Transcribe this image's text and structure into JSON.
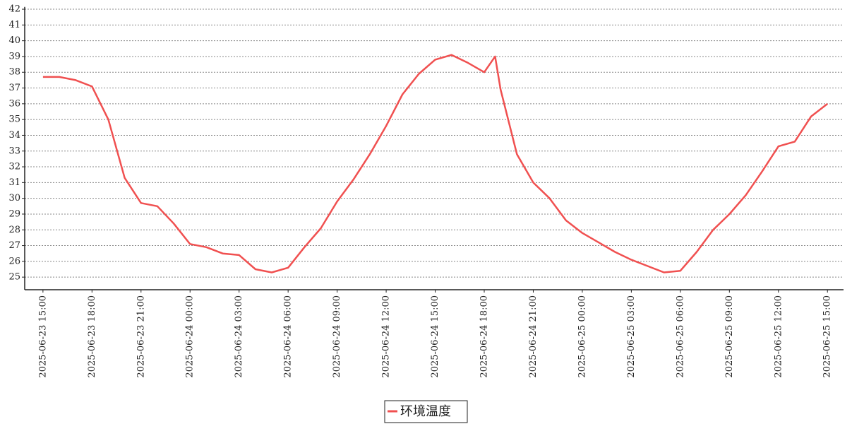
{
  "chart_data": {
    "type": "line",
    "x": [
      "2025-06-23 15:00",
      "2025-06-23 16:00",
      "2025-06-23 17:00",
      "2025-06-23 18:00",
      "2025-06-23 19:00",
      "2025-06-23 20:00",
      "2025-06-23 21:00",
      "2025-06-23 22:00",
      "2025-06-23 23:00",
      "2025-06-24 00:00",
      "2025-06-24 01:00",
      "2025-06-24 02:00",
      "2025-06-24 03:00",
      "2025-06-24 04:00",
      "2025-06-24 05:00",
      "2025-06-24 06:00",
      "2025-06-24 07:00",
      "2025-06-24 08:00",
      "2025-06-24 09:00",
      "2025-06-24 10:00",
      "2025-06-24 11:00",
      "2025-06-24 12:00",
      "2025-06-24 13:00",
      "2025-06-24 14:00",
      "2025-06-24 15:00",
      "2025-06-24 16:00",
      "2025-06-24 17:00",
      "2025-06-24 18:00",
      "2025-06-24 18:40",
      "2025-06-24 19:00",
      "2025-06-24 20:00",
      "2025-06-24 21:00",
      "2025-06-24 22:00",
      "2025-06-24 23:00",
      "2025-06-25 00:00",
      "2025-06-25 01:00",
      "2025-06-25 02:00",
      "2025-06-25 03:00",
      "2025-06-25 04:00",
      "2025-06-25 05:00",
      "2025-06-25 06:00",
      "2025-06-25 07:00",
      "2025-06-25 08:00",
      "2025-06-25 09:00",
      "2025-06-25 10:00",
      "2025-06-25 11:00",
      "2025-06-25 12:00",
      "2025-06-25 13:00",
      "2025-06-25 14:00",
      "2025-06-25 15:00"
    ],
    "series": [
      {
        "name": "环境温度",
        "color": "#f05050",
        "values": [
          37.7,
          37.7,
          37.5,
          37.1,
          35.0,
          31.3,
          29.7,
          29.5,
          28.4,
          27.1,
          26.9,
          26.5,
          26.4,
          25.5,
          25.3,
          25.6,
          26.9,
          28.1,
          29.8,
          31.2,
          32.8,
          34.6,
          36.6,
          37.9,
          38.8,
          39.1,
          38.6,
          38.0,
          39.0,
          36.9,
          32.8,
          31.0,
          30.0,
          28.6,
          27.8,
          27.2,
          26.6,
          26.1,
          25.7,
          25.3,
          25.4,
          26.6,
          28.0,
          29.0,
          30.2,
          31.7,
          33.3,
          33.6,
          35.2,
          36.0
        ]
      }
    ],
    "xlim": [
      "2025-06-23 13:53",
      "2025-06-25 15:59"
    ],
    "xticks": [
      "2025-06-23 15:00",
      "2025-06-23 18:00",
      "2025-06-23 21:00",
      "2025-06-24 00:00",
      "2025-06-24 03:00",
      "2025-06-24 06:00",
      "2025-06-24 09:00",
      "2025-06-24 12:00",
      "2025-06-24 15:00",
      "2025-06-24 18:00",
      "2025-06-24 21:00",
      "2025-06-25 00:00",
      "2025-06-25 03:00",
      "2025-06-25 06:00",
      "2025-06-25 09:00",
      "2025-06-25 12:00",
      "2025-06-25 15:00"
    ],
    "ylim": [
      24.2,
      42.15
    ],
    "yticks": [
      25,
      26,
      27,
      28,
      29,
      30,
      31,
      32,
      33,
      34,
      35,
      36,
      37,
      38,
      39,
      40,
      41,
      42
    ],
    "grid": true
  }
}
